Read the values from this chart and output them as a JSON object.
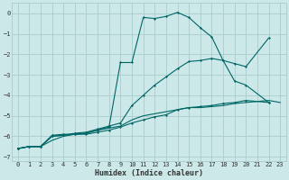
{
  "xlabel": "Humidex (Indice chaleur)",
  "bg_color": "#cce8e8",
  "grid_color": "#aacccc",
  "line_color": "#006666",
  "xlim": [
    -0.5,
    23.5
  ],
  "ylim": [
    -7.2,
    0.5
  ],
  "xticks": [
    0,
    1,
    2,
    3,
    4,
    5,
    6,
    7,
    8,
    9,
    10,
    11,
    12,
    13,
    14,
    15,
    16,
    17,
    18,
    19,
    20,
    21,
    22,
    23
  ],
  "yticks": [
    0,
    -1,
    -2,
    -3,
    -4,
    -5,
    -6,
    -7
  ],
  "line1_x": [
    0,
    1,
    2,
    3,
    4,
    5,
    6,
    7,
    8,
    9,
    10,
    11,
    12,
    13,
    14,
    15,
    16,
    17,
    18,
    19,
    20,
    21,
    22,
    23
  ],
  "line1_y": [
    -6.6,
    -6.5,
    -6.5,
    -6.2,
    -6.0,
    -5.9,
    -5.85,
    -5.7,
    -5.6,
    -5.5,
    -5.2,
    -5.0,
    -4.9,
    -4.8,
    -4.7,
    -4.6,
    -4.6,
    -4.55,
    -4.5,
    -4.4,
    -4.35,
    -4.3,
    -4.25,
    -4.35
  ],
  "line2_x": [
    0,
    1,
    2,
    3,
    4,
    5,
    6,
    7,
    8,
    9,
    10,
    11,
    12,
    13,
    14,
    15,
    16,
    17,
    18,
    19,
    20,
    22
  ],
  "line2_y": [
    -6.6,
    -6.5,
    -6.5,
    -6.0,
    -5.95,
    -5.9,
    -5.9,
    -5.8,
    -5.7,
    -5.55,
    -5.35,
    -5.2,
    -5.05,
    -4.95,
    -4.7,
    -4.6,
    -4.55,
    -4.5,
    -4.4,
    -4.35,
    -4.25,
    -4.35
  ],
  "line3_x": [
    0,
    1,
    2,
    3,
    4,
    5,
    6,
    7,
    8,
    9,
    10,
    11,
    12,
    13,
    14,
    15,
    16,
    17,
    18,
    19,
    20,
    22
  ],
  "line3_y": [
    -6.6,
    -6.5,
    -6.5,
    -5.95,
    -5.9,
    -5.9,
    -5.85,
    -5.7,
    -5.55,
    -2.4,
    -2.4,
    -0.2,
    -0.25,
    -0.15,
    0.05,
    -0.2,
    -0.7,
    -1.15,
    -2.3,
    -3.3,
    -3.5,
    -4.35
  ],
  "line4_x": [
    0,
    1,
    2,
    3,
    4,
    5,
    6,
    7,
    8,
    9,
    10,
    11,
    12,
    13,
    14,
    15,
    16,
    17,
    18,
    19,
    20,
    22
  ],
  "line4_y": [
    -6.6,
    -6.5,
    -6.5,
    -6.0,
    -5.95,
    -5.85,
    -5.8,
    -5.65,
    -5.5,
    -5.35,
    -4.5,
    -4.0,
    -3.5,
    -3.1,
    -2.7,
    -2.35,
    -2.3,
    -2.2,
    -2.3,
    -2.45,
    -2.6,
    -1.2
  ]
}
